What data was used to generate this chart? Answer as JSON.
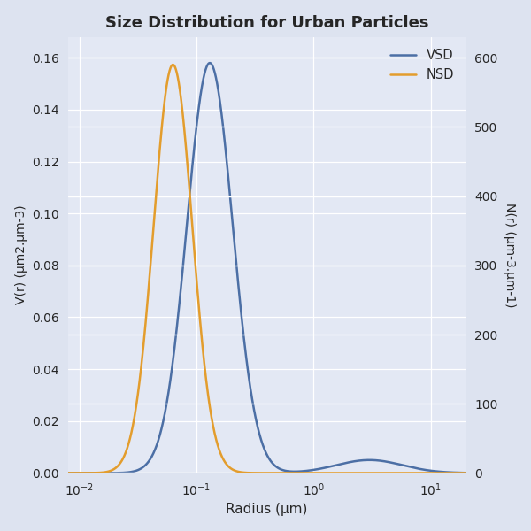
{
  "title": "Size Distribution for Urban Particles",
  "xlabel": "Radius (μm)",
  "ylabel_left": "V(r) (μm2.μm-3)",
  "ylabel_right": "N(r) (μm-3.μm-1)",
  "xlim": [
    0.008,
    20
  ],
  "ylim_left": [
    0,
    0.168
  ],
  "ylim_right": [
    0,
    630
  ],
  "vsd_color": "#4c6fa5",
  "nsd_color": "#e39d2d",
  "background_color": "#dde3f0",
  "plot_bg_color": "#e3e8f4",
  "legend_labels": [
    "VSD",
    "NSD"
  ],
  "vsd_modes": [
    {
      "r_mode": 0.13,
      "sigma": 0.45,
      "amplitude": 0.158
    },
    {
      "r_mode": 3.0,
      "sigma": 0.65,
      "amplitude": 0.005
    }
  ],
  "nsd_modes": [
    {
      "r_mode": 0.063,
      "sigma": 0.38,
      "amplitude": 590
    }
  ],
  "yticks_left": [
    0.0,
    0.02,
    0.04,
    0.06,
    0.08,
    0.1,
    0.12,
    0.14,
    0.16
  ],
  "yticks_right": [
    0,
    100,
    200,
    300,
    400,
    500,
    600
  ]
}
